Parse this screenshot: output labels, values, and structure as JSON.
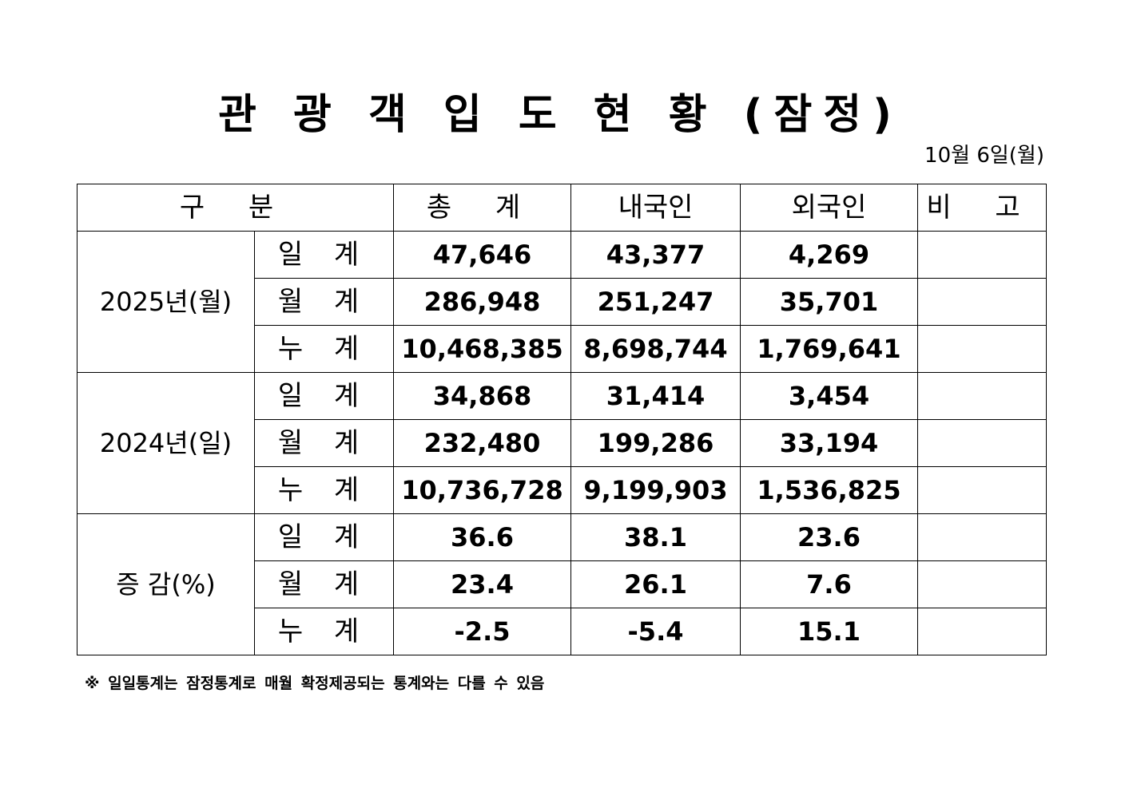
{
  "title": "관 광 객 입 도 현 황 (잠정)",
  "date": "10월 6일(월)",
  "header": {
    "category": "구 분",
    "total": "총 계",
    "domestic": "내국인",
    "foreign": "외국인",
    "remarks": "비 고"
  },
  "groups": [
    {
      "label": "2025년(월)",
      "rows": [
        {
          "sub": "일 계",
          "total": "47,646",
          "domestic": "43,377",
          "foreign": "4,269",
          "remarks": ""
        },
        {
          "sub": "월 계",
          "total": "286,948",
          "domestic": "251,247",
          "foreign": "35,701",
          "remarks": ""
        },
        {
          "sub": "누 계",
          "total": "10,468,385",
          "domestic": "8,698,744",
          "foreign": "1,769,641",
          "remarks": ""
        }
      ]
    },
    {
      "label": "2024년(일)",
      "rows": [
        {
          "sub": "일 계",
          "total": "34,868",
          "domestic": "31,414",
          "foreign": "3,454",
          "remarks": ""
        },
        {
          "sub": "월 계",
          "total": "232,480",
          "domestic": "199,286",
          "foreign": "33,194",
          "remarks": ""
        },
        {
          "sub": "누 계",
          "total": "10,736,728",
          "domestic": "9,199,903",
          "foreign": "1,536,825",
          "remarks": ""
        }
      ]
    },
    {
      "label": "증 감(%)",
      "rows": [
        {
          "sub": "일 계",
          "total": "36.6",
          "domestic": "38.1",
          "foreign": "23.6",
          "remarks": ""
        },
        {
          "sub": "월 계",
          "total": "23.4",
          "domestic": "26.1",
          "foreign": "7.6",
          "remarks": ""
        },
        {
          "sub": "누 계",
          "total": "-2.5",
          "domestic": "-5.4",
          "foreign": "15.1",
          "remarks": ""
        }
      ]
    }
  ],
  "footnote": "※ 일일통계는 잠정통계로 매월 확정제공되는 통계와는 다를 수 있음"
}
